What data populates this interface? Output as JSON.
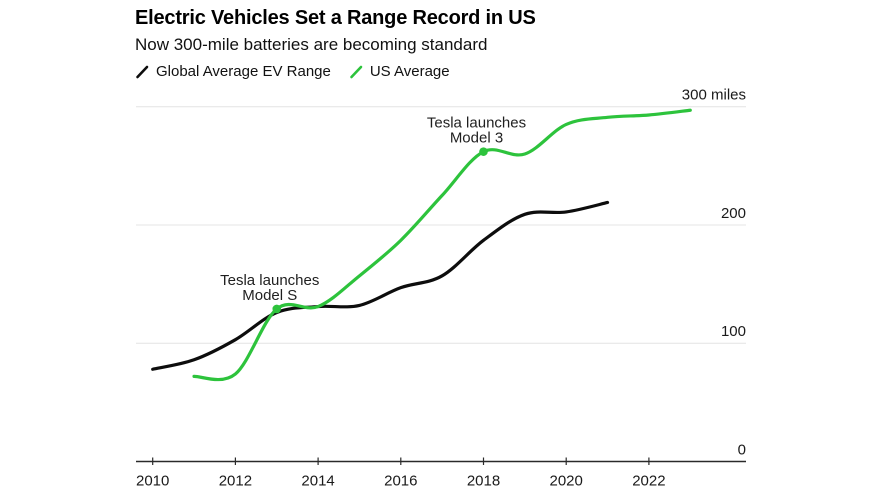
{
  "header": {
    "title": "Electric Vehicles Set a Range Record in US",
    "subtitle": "Now 300-mile batteries are becoming standard"
  },
  "legend": [
    {
      "label": "Global Average EV Range",
      "color": "#0d0d0d",
      "icon": "slash-icon"
    },
    {
      "label": "US Average",
      "color": "#2dc33c",
      "icon": "slash-icon"
    }
  ],
  "colors": {
    "background": "#ffffff",
    "global_line": "#0d0d0d",
    "us_line": "#2dc33c",
    "gridline": "#e4e4e4",
    "axis": "#2a2a2a",
    "text": "#1a1a1a"
  },
  "chart_data": {
    "type": "line",
    "title": "Electric Vehicles Set a Range Record in US",
    "subtitle": "Now 300-mile batteries are becoming standard",
    "xlabel": "",
    "ylabel": "miles",
    "ylim": [
      0,
      300
    ],
    "xlim": [
      2009.6,
      2024.4
    ],
    "grid": "horizontal-y",
    "legend_position": "top-left",
    "x_ticks": [
      2010,
      2012,
      2014,
      2016,
      2018,
      2020,
      2022
    ],
    "y_ticks": [
      {
        "value": 0,
        "label": "0"
      },
      {
        "value": 100,
        "label": "100"
      },
      {
        "value": 200,
        "label": "200"
      },
      {
        "value": 300,
        "label": "300 miles"
      }
    ],
    "series": [
      {
        "name": "Global Average EV Range",
        "color": "#0d0d0d",
        "x": [
          2010,
          2011,
          2012,
          2013,
          2014,
          2015,
          2016,
          2017,
          2018,
          2019,
          2020,
          2021
        ],
        "values": [
          78,
          86,
          103,
          126,
          131,
          132,
          147,
          157,
          187,
          209,
          211,
          219
        ]
      },
      {
        "name": "US Average",
        "color": "#2dc33c",
        "x": [
          2011,
          2012,
          2013,
          2014,
          2015,
          2016,
          2017,
          2018,
          2019,
          2020,
          2021,
          2022,
          2023
        ],
        "values": [
          72,
          74,
          129,
          131,
          157,
          187,
          225,
          262,
          260,
          285,
          291,
          293,
          297
        ]
      }
    ],
    "annotations": [
      {
        "lines": [
          "Tesla launches",
          "Model S"
        ],
        "x": 2013,
        "y": 129,
        "series": "US Average"
      },
      {
        "lines": [
          "Tesla launches",
          "Model 3"
        ],
        "x": 2018,
        "y": 262,
        "series": "US Average"
      }
    ]
  }
}
